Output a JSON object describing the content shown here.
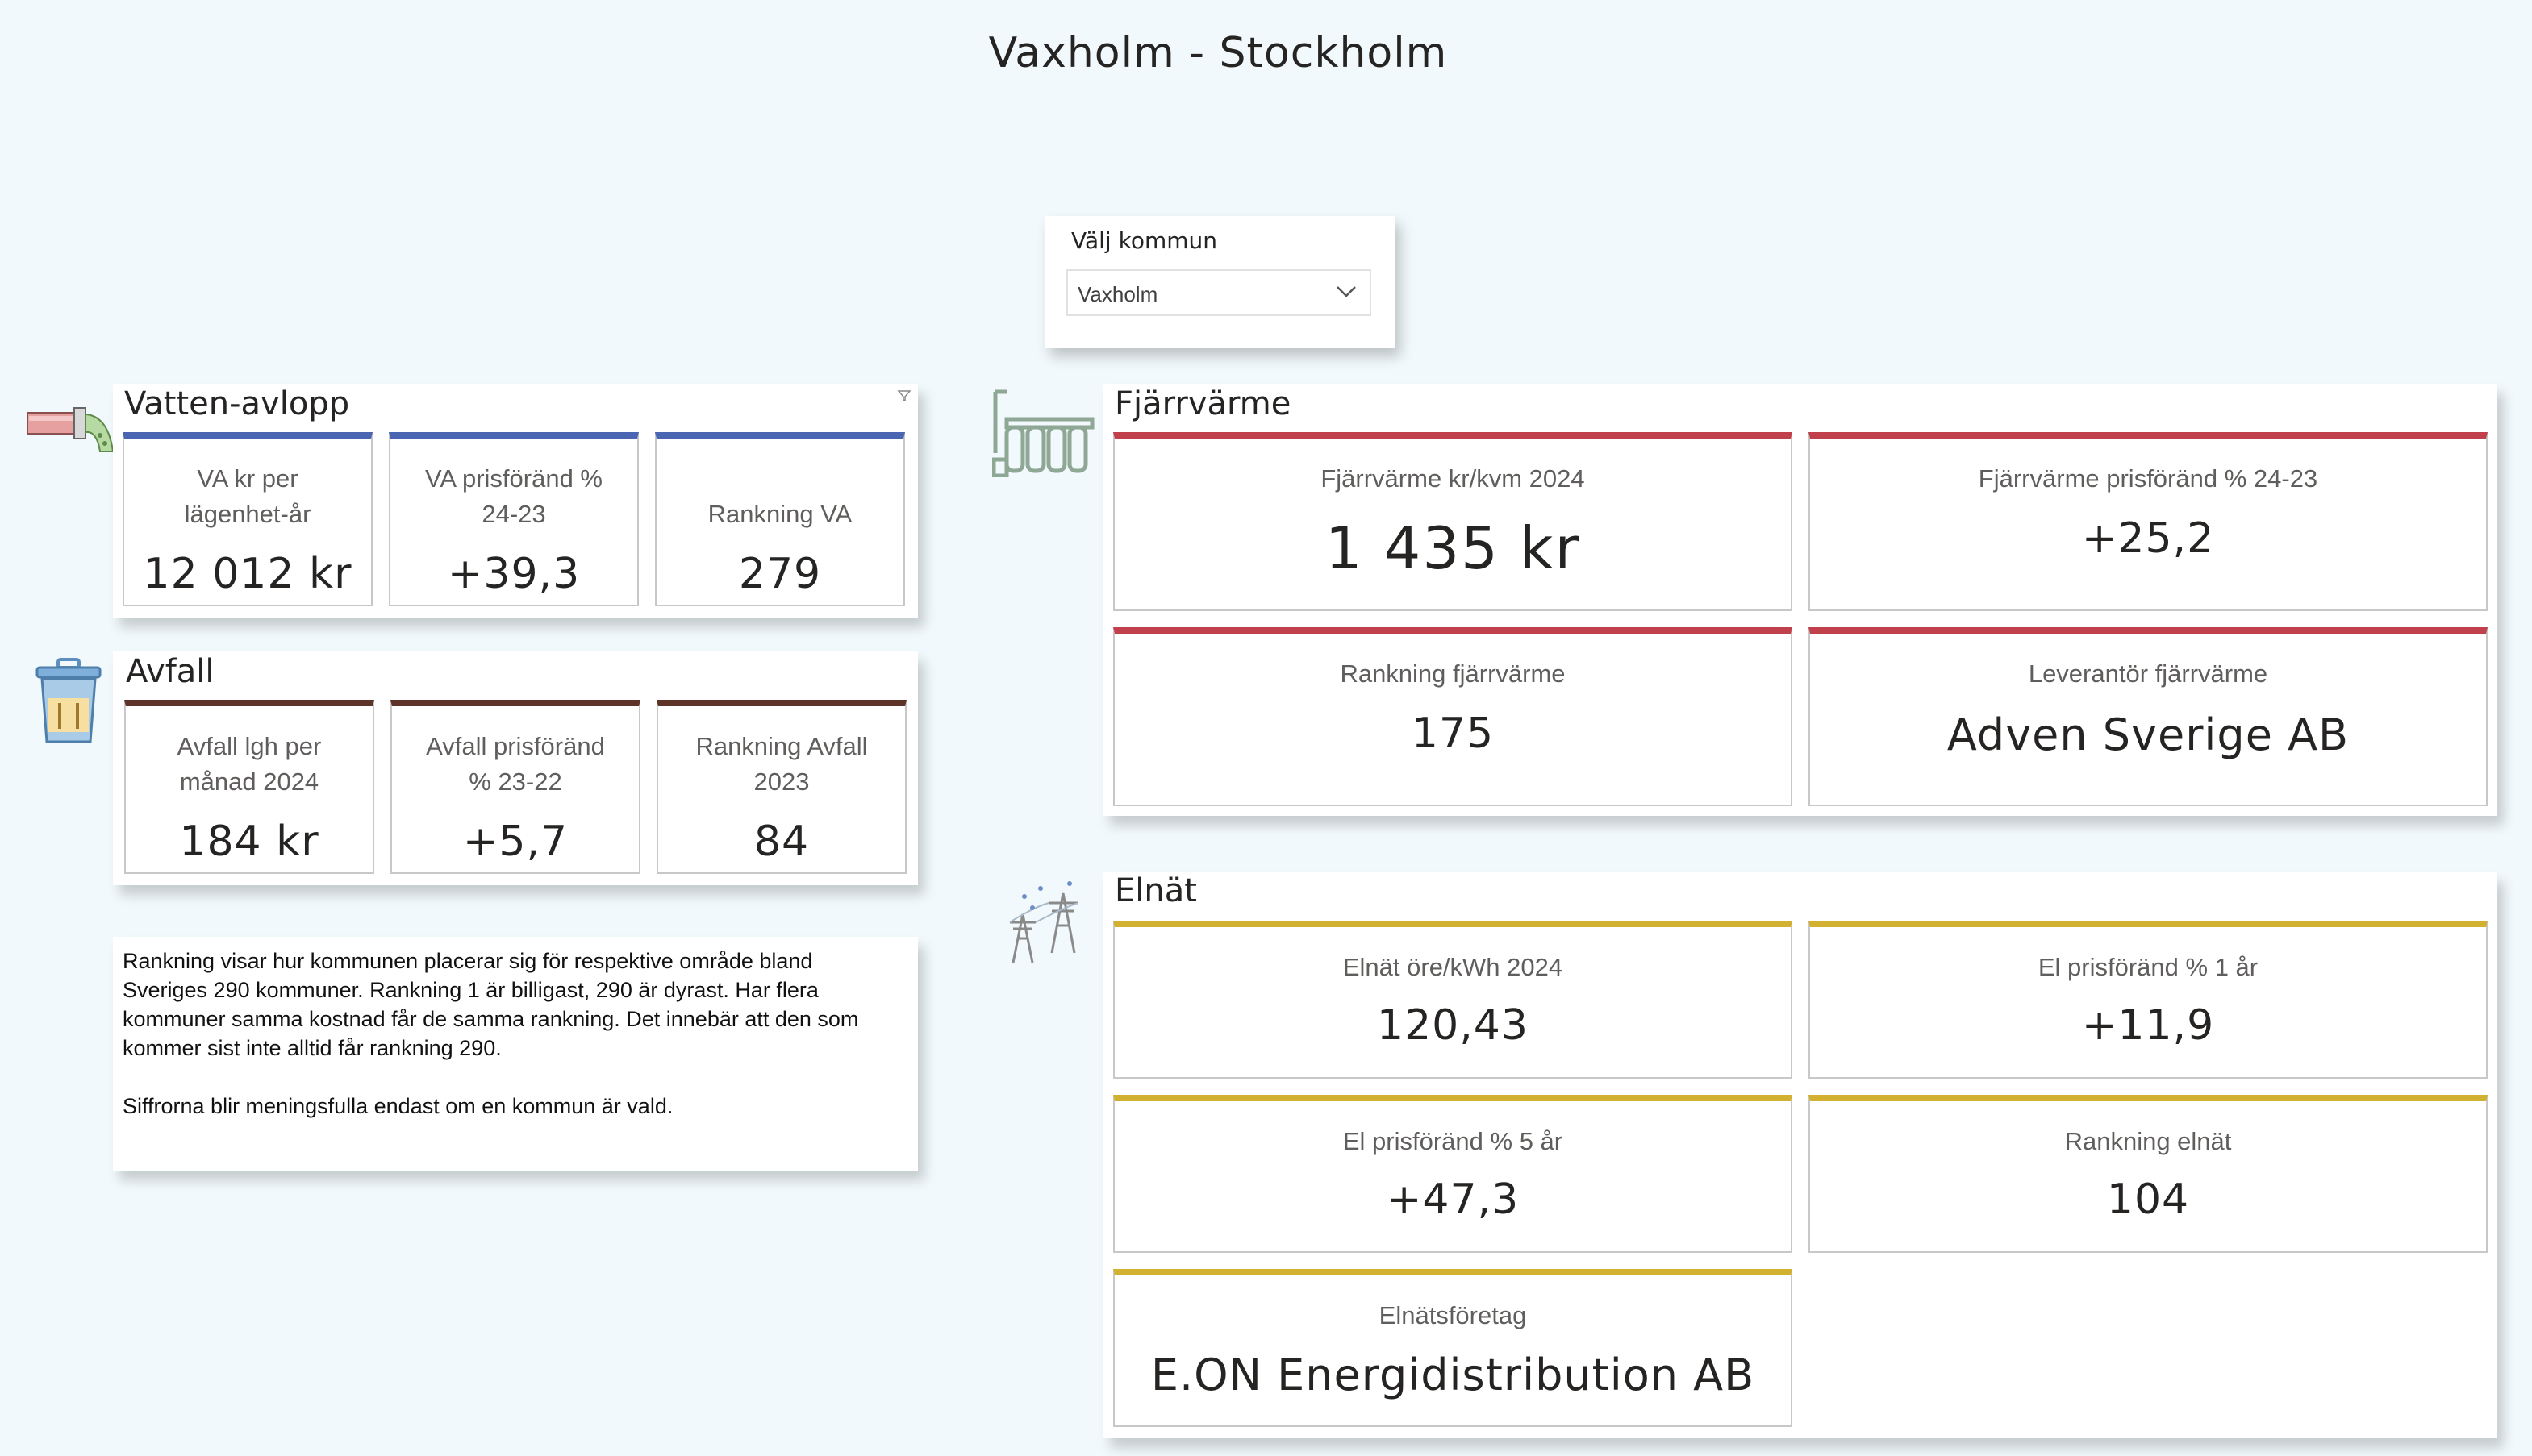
{
  "page_title": "Vaxholm - Stockholm",
  "slicer": {
    "label": "Välj kommun",
    "value": "Vaxholm"
  },
  "vatten": {
    "title": "Vatten-avlopp",
    "cards": [
      {
        "label": "VA kr per lägenhet-år",
        "value": "12 012 kr"
      },
      {
        "label": "VA prisföränd % 24-23",
        "value": "+39,3"
      },
      {
        "label": "Rankning VA",
        "value": "279"
      }
    ]
  },
  "avfall": {
    "title": "Avfall",
    "cards": [
      {
        "label": "Avfall lgh per månad 2024",
        "value": "184 kr"
      },
      {
        "label": "Avfall prisföränd % 23-22",
        "value": "+5,7"
      },
      {
        "label": "Rankning Avfall 2023",
        "value": "84"
      }
    ]
  },
  "info": {
    "p1": "Rankning visar hur kommunen placerar sig för respektive område bland Sveriges 290 kommuner. Rankning 1 är billigast, 290 är  dyrast. Har flera kommuner samma kostnad får de samma rankning. Det innebär att den som kommer sist inte alltid får rankning 290.",
    "p2": "Siffrorna blir meningsfulla endast om en kommun är vald."
  },
  "fjarrvarme": {
    "title": "Fjärrvärme",
    "cards": [
      {
        "label": "Fjärrvärme kr/kvm 2024",
        "value": "1 435 kr"
      },
      {
        "label": "Fjärrvärme prisföränd % 24-23",
        "value": "+25,2"
      },
      {
        "label": "Rankning fjärrvärme",
        "value": "175"
      },
      {
        "label": "Leverantör fjärrvärme",
        "value": "Adven Sverige AB"
      }
    ]
  },
  "elnat": {
    "title": "Elnät",
    "cards": [
      {
        "label": "Elnät öre/kWh 2024",
        "value": "120,43"
      },
      {
        "label": "El prisföränd % 1 år",
        "value": "+11,9"
      },
      {
        "label": "El prisföränd % 5 år",
        "value": "+47,3"
      },
      {
        "label": "Rankning elnät",
        "value": "104"
      },
      {
        "label": "Elnätsföretag",
        "value": "E.ON Energidistribution AB"
      }
    ]
  },
  "icons": {
    "vatten": "pipe-icon",
    "avfall": "trash-bin-icon",
    "fjarrvarme": "radiator-icon",
    "elnat": "power-tower-icon"
  },
  "colors": {
    "background": "#f1f9fc",
    "vatten_accent": "#4a66b3",
    "avfall_accent": "#5f3428",
    "fjarrvarme_accent": "#c0404c",
    "elnat_accent": "#d1b12f"
  }
}
